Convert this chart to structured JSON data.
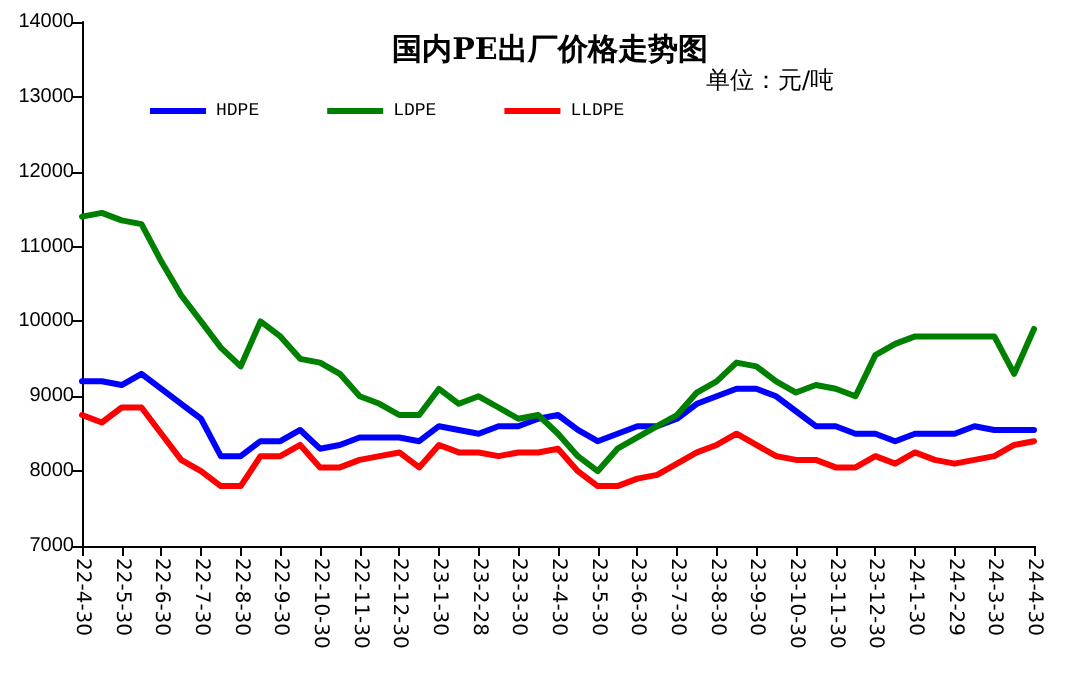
{
  "chart_data": {
    "type": "line",
    "title": "国内PE出厂价格走势图",
    "subtitle": "单位：元/吨",
    "categories": [
      "22-4-30",
      null,
      "22-5-30",
      null,
      "22-6-30",
      null,
      "22-7-30",
      null,
      "22-8-30",
      null,
      "22-9-30",
      null,
      "22-10-30",
      null,
      "22-11-30",
      null,
      "22-12-30",
      null,
      "23-1-30",
      null,
      "23-2-28",
      null,
      "23-3-30",
      null,
      "23-4-30",
      null,
      "23-5-30",
      null,
      "23-6-30",
      null,
      "23-7-30",
      null,
      "23-8-30",
      null,
      "23-9-30",
      null,
      "23-10-30",
      null,
      "23-11-30",
      null,
      "23-12-30",
      null,
      "24-1-30",
      null,
      "24-2-29",
      null,
      "24-3-30",
      null,
      "24-4-30"
    ],
    "series": [
      {
        "name": "HDPE",
        "color": "#0000ff",
        "values": [
          9200,
          9200,
          9150,
          9300,
          9100,
          8900,
          8700,
          8200,
          8200,
          8400,
          8400,
          8550,
          8300,
          8350,
          8450,
          8450,
          8450,
          8400,
          8600,
          8550,
          8500,
          8600,
          8600,
          8700,
          8750,
          8550,
          8400,
          8500,
          8600,
          8600,
          8700,
          8900,
          9000,
          9100,
          9100,
          9000,
          8800,
          8600,
          8600,
          8500,
          8500,
          8400,
          8500,
          8500,
          8500,
          8600,
          8550,
          8550,
          8550
        ]
      },
      {
        "name": "LDPE",
        "color": "#008000",
        "values": [
          11400,
          11450,
          11350,
          11300,
          10800,
          10350,
          10000,
          9650,
          9400,
          10000,
          9800,
          9500,
          9450,
          9300,
          9000,
          8900,
          8750,
          8750,
          9100,
          8900,
          9000,
          8850,
          8700,
          8750,
          8500,
          8200,
          8000,
          8300,
          8450,
          8600,
          8750,
          9050,
          9200,
          9450,
          9400,
          9200,
          9050,
          9150,
          9100,
          9000,
          9550,
          9700,
          9800,
          9800,
          9800,
          9800,
          9800,
          9300,
          9900
        ]
      },
      {
        "name": "LLDPE",
        "color": "#ff0000",
        "values": [
          8750,
          8650,
          8850,
          8850,
          8500,
          8150,
          8000,
          7800,
          7800,
          8200,
          8200,
          8350,
          8050,
          8050,
          8150,
          8200,
          8250,
          8050,
          8350,
          8250,
          8250,
          8200,
          8250,
          8250,
          8300,
          8000,
          7800,
          7800,
          7900,
          7950,
          8100,
          8250,
          8350,
          8500,
          8350,
          8200,
          8150,
          8150,
          8050,
          8050,
          8200,
          8100,
          8250,
          8150,
          8100,
          8150,
          8200,
          8350,
          8400
        ]
      }
    ],
    "ylim": [
      7000,
      14000
    ],
    "yticks": [
      7000,
      8000,
      9000,
      10000,
      11000,
      12000,
      13000,
      14000
    ],
    "grid": false,
    "legend": "top",
    "marker": "none",
    "line_style": "solid"
  }
}
